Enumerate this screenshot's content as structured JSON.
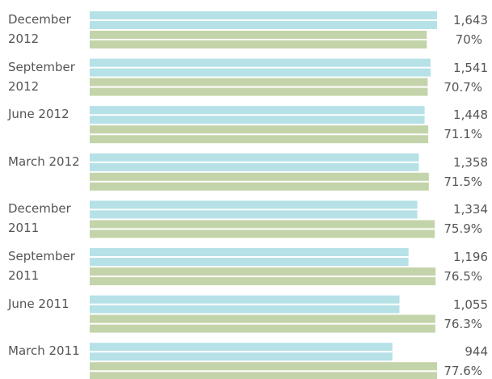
{
  "chart_data": {
    "type": "bar",
    "categories": [
      "December 2012",
      "September 2012",
      "June 2012",
      "March 2012",
      "December 2011",
      "September 2011",
      "June 2011",
      "March 2011"
    ],
    "series": [
      {
        "color": "#b5e1e7",
        "values": [
          1643,
          1541,
          1448,
          1358,
          1334,
          1196,
          1055,
          944
        ],
        "value_labels": [
          "1,643",
          "1,541",
          "1,448",
          "1,358",
          "1,334",
          "1,196",
          "1,055",
          "944"
        ]
      },
      {
        "color": "#c4d4aa",
        "values": [
          70,
          70.7,
          71.1,
          71.5,
          75.9,
          76.5,
          76.3,
          77.6
        ],
        "value_labels": [
          "70%",
          "70.7%",
          "71.1%",
          "71.5%",
          "75.9%",
          "76.5%",
          "76.3%",
          "77.6%"
        ]
      }
    ]
  }
}
